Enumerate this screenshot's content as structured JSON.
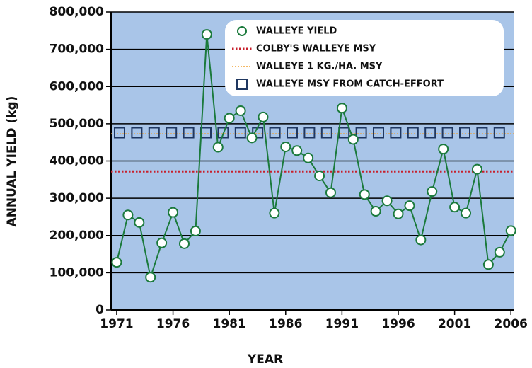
{
  "chart_data": {
    "type": "line",
    "x_label": "YEAR",
    "y_label": "ANNUAL YIELD (kg)",
    "x": [
      1971,
      1972,
      1973,
      1974,
      1975,
      1976,
      1977,
      1978,
      1979,
      1980,
      1981,
      1982,
      1983,
      1984,
      1985,
      1986,
      1987,
      1988,
      1989,
      1990,
      1991,
      1992,
      1993,
      1994,
      1995,
      1996,
      1997,
      1998,
      1999,
      2000,
      2001,
      2002,
      2003,
      2004,
      2005,
      2006
    ],
    "series": [
      {
        "name": "WALLEYE YIELD",
        "color": "#1b7a3c",
        "values": [
          128000,
          255000,
          235000,
          88000,
          180000,
          262000,
          178000,
          212000,
          740000,
          437000,
          515000,
          535000,
          462000,
          518000,
          260000,
          438000,
          428000,
          408000,
          360000,
          315000,
          542000,
          458000,
          310000,
          265000,
          293000,
          258000,
          280000,
          188000,
          318000,
          432000,
          276000,
          260000,
          378000,
          122000,
          155000,
          213000
        ]
      },
      {
        "name": "COLBY'S WALLEYE MSY",
        "color": "#c8202c",
        "value": 372000
      },
      {
        "name": "WALLEYE 1 KG./HA. MSY",
        "color": "#f0a030",
        "value": 473000
      },
      {
        "name": "WALLEYE MSY FROM CATCH-EFFORT",
        "color": "#1f3760",
        "value": 476000
      }
    ],
    "xlim": [
      1970.5,
      2006.3
    ],
    "ylim": [
      0,
      800000
    ],
    "xticks": [
      1971,
      1976,
      1981,
      1986,
      1991,
      1996,
      2001,
      2006
    ],
    "yticks": [
      0,
      {
        "value": 100000,
        "label": "100,000"
      },
      {
        "value": 200000,
        "label": "200,000"
      },
      {
        "value": 300000,
        "label": "300,000"
      },
      {
        "value": 400000,
        "label": "400,000"
      },
      {
        "value": 500000,
        "label": "500,000"
      },
      {
        "value": 600000,
        "label": "600,000"
      },
      {
        "value": 700000,
        "label": "700,000"
      },
      {
        "value": 800000,
        "label": "800,000"
      }
    ],
    "grid": true,
    "background": "#a9c5e8",
    "legend": "upper right"
  }
}
